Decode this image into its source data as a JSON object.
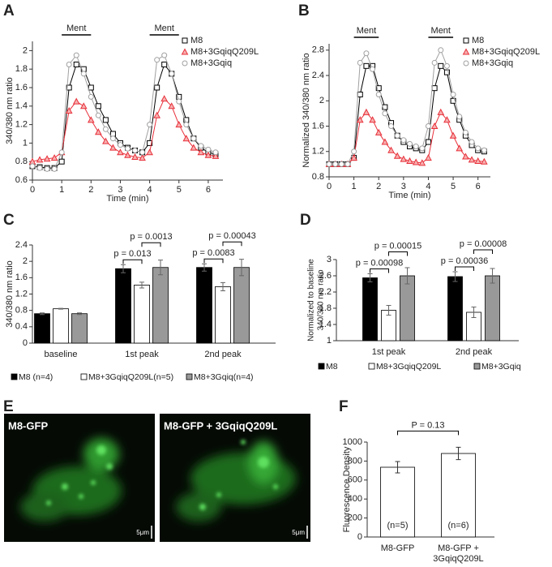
{
  "chart_data": [
    {
      "type": "line",
      "panel_label": "A",
      "xlabel": "Time (min)",
      "ylabel": "340/380 nm ratio",
      "x": [
        0,
        0.25,
        0.5,
        0.75,
        1,
        1.25,
        1.5,
        1.75,
        2,
        2.25,
        2.5,
        2.75,
        3,
        3.25,
        3.5,
        3.75,
        4,
        4.25,
        4.5,
        4.75,
        5,
        5.25,
        5.5,
        5.75,
        6,
        6.25
      ],
      "xlim": [
        0,
        6.5
      ],
      "xticks": [
        0,
        1,
        2,
        3,
        4,
        5,
        6
      ],
      "ylim": [
        0.6,
        2.1
      ],
      "yticks": [
        0.6,
        0.8,
        1,
        1.2,
        1.4,
        1.6,
        1.8,
        2
      ],
      "stimuli": [
        {
          "label": "Ment",
          "start": 1,
          "end": 2
        },
        {
          "label": "Ment",
          "start": 4,
          "end": 5
        }
      ],
      "legend": "upper right",
      "series": [
        {
          "name": "M8",
          "color": "#000000",
          "marker": "square",
          "values": [
            0.75,
            0.74,
            0.73,
            0.73,
            0.8,
            1.6,
            1.85,
            1.8,
            1.6,
            1.4,
            1.25,
            1.1,
            1.0,
            0.95,
            0.92,
            0.9,
            1.0,
            1.6,
            1.85,
            1.75,
            1.5,
            1.25,
            1.05,
            0.95,
            0.9,
            0.88
          ]
        },
        {
          "name": "M8+3GqiqQ209L",
          "color": "#e8303a",
          "marker": "triangle",
          "values": [
            0.8,
            0.82,
            0.83,
            0.84,
            0.9,
            1.35,
            1.45,
            1.4,
            1.25,
            1.12,
            1.02,
            0.95,
            0.9,
            0.87,
            0.85,
            0.84,
            0.9,
            1.3,
            1.48,
            1.4,
            1.2,
            1.05,
            0.95,
            0.9,
            0.87,
            0.86
          ]
        },
        {
          "name": "M8+3Gqiq",
          "color": "#a0a0a0",
          "marker": "circle",
          "values": [
            0.75,
            0.73,
            0.72,
            0.72,
            0.9,
            1.85,
            1.95,
            1.75,
            1.5,
            1.3,
            1.15,
            1.05,
            0.98,
            0.94,
            0.92,
            0.9,
            1.2,
            1.9,
            1.95,
            1.75,
            1.45,
            1.2,
            1.05,
            0.97,
            0.93,
            0.9
          ]
        }
      ]
    },
    {
      "type": "line",
      "panel_label": "B",
      "xlabel": "Time (min)",
      "ylabel": "Normalized 340/380 nm ratio",
      "x": [
        0,
        0.25,
        0.5,
        0.75,
        1,
        1.25,
        1.5,
        1.75,
        2,
        2.25,
        2.5,
        2.75,
        3,
        3.25,
        3.5,
        3.75,
        4,
        4.25,
        4.5,
        4.75,
        5,
        5.25,
        5.5,
        5.75,
        6,
        6.25
      ],
      "xlim": [
        0,
        6.5
      ],
      "xticks": [
        0,
        1,
        2,
        3,
        4,
        5,
        6
      ],
      "ylim": [
        0.8,
        2.9
      ],
      "yticks": [
        0.8,
        1.2,
        1.6,
        2,
        2.4,
        2.8
      ],
      "stimuli": [
        {
          "label": "Ment",
          "start": 1,
          "end": 2
        },
        {
          "label": "Ment",
          "start": 4,
          "end": 5
        }
      ],
      "legend": "upper right",
      "series": [
        {
          "name": "M8",
          "color": "#000000",
          "marker": "square",
          "values": [
            1.0,
            1.0,
            1.0,
            1.0,
            1.1,
            2.1,
            2.55,
            2.55,
            2.2,
            1.9,
            1.65,
            1.45,
            1.35,
            1.28,
            1.25,
            1.22,
            1.35,
            2.2,
            2.55,
            2.45,
            2.0,
            1.7,
            1.45,
            1.3,
            1.22,
            1.2
          ]
        },
        {
          "name": "M8+3GqiqQ209L",
          "color": "#e8303a",
          "marker": "triangle",
          "values": [
            1.0,
            1.0,
            1.0,
            1.0,
            1.1,
            1.7,
            1.82,
            1.7,
            1.5,
            1.35,
            1.22,
            1.13,
            1.08,
            1.05,
            1.03,
            1.02,
            1.1,
            1.6,
            1.82,
            1.7,
            1.45,
            1.25,
            1.12,
            1.07,
            1.05,
            1.04
          ]
        },
        {
          "name": "M8+3Gqiq",
          "color": "#a0a0a0",
          "marker": "circle",
          "values": [
            1.0,
            1.0,
            1.0,
            1.0,
            1.2,
            2.6,
            2.75,
            2.5,
            2.1,
            1.8,
            1.6,
            1.45,
            1.38,
            1.32,
            1.28,
            1.25,
            1.6,
            2.6,
            2.8,
            2.55,
            2.1,
            1.75,
            1.5,
            1.35,
            1.25,
            1.22
          ]
        }
      ]
    },
    {
      "type": "bar",
      "panel_label": "C",
      "ylabel": "340/380 nm ratio",
      "categories": [
        "baseline",
        "1st peak",
        "2nd peak"
      ],
      "ylim": [
        0,
        2.4
      ],
      "yticks": [
        0,
        0.4,
        0.8,
        1.2,
        1.6,
        2,
        2.4
      ],
      "legend": "bottom",
      "series": [
        {
          "name": "M8 (n=4)",
          "color": "#000000",
          "values": [
            0.72,
            1.82,
            1.85
          ],
          "errors": [
            0.02,
            0.1,
            0.09
          ]
        },
        {
          "name": "M8+3GqiqQ209L(n=5)",
          "color": "#ffffff",
          "values": [
            0.84,
            1.42,
            1.38
          ],
          "errors": [
            0.01,
            0.07,
            0.1
          ]
        },
        {
          "name": "M8+3Gqiq(n=4)",
          "color": "#999999",
          "values": [
            0.72,
            1.85,
            1.85
          ],
          "errors": [
            0.02,
            0.18,
            0.2
          ]
        }
      ],
      "annotations": [
        [
          "p = 0.013",
          "p = 0.0013"
        ],
        [
          "p = 0.0083",
          "p = 0.00043"
        ]
      ]
    },
    {
      "type": "bar",
      "panel_label": "D",
      "ylabel": [
        "Normalized to baseline",
        "340/380 nm ratio"
      ],
      "categories": [
        "1st peak",
        "2nd peak"
      ],
      "ylim": [
        1,
        3
      ],
      "yticks": [
        1,
        1.4,
        1.8,
        2.2,
        2.6,
        3
      ],
      "legend": "bottom",
      "series": [
        {
          "name": "M8",
          "color": "#000000",
          "values": [
            2.55,
            2.58
          ],
          "errors": [
            0.1,
            0.12
          ]
        },
        {
          "name": "M8+3GqiqQ209L",
          "color": "#ffffff",
          "values": [
            1.75,
            1.7
          ],
          "errors": [
            0.12,
            0.13
          ]
        },
        {
          "name": "M8+3Gqiq",
          "color": "#999999",
          "values": [
            2.6,
            2.6
          ],
          "errors": [
            0.2,
            0.18
          ]
        }
      ],
      "annotations": [
        [
          "p = 0.00098",
          "p = 0.00015"
        ],
        [
          "p = 0.00036",
          "p = 0.00008"
        ]
      ]
    },
    {
      "type": "bar",
      "panel_label": "F",
      "ylabel": "Fluorescence Density",
      "categories": [
        "M8-GFP",
        "M8-GFP + 3GqiqQ209L"
      ],
      "values": [
        735,
        880
      ],
      "errors": [
        60,
        65
      ],
      "color": "#ffffff",
      "n_labels": [
        "(n=5)",
        "(n=6)"
      ],
      "comparison": "P = 0.13",
      "ylim": [
        0,
        1000
      ],
      "yticks": [
        0,
        200,
        400,
        600,
        800,
        1000
      ]
    }
  ],
  "images": {
    "panel_label": "E",
    "panels": [
      {
        "label": "M8-GFP",
        "scale": "5μm"
      },
      {
        "label": "M8-GFP + 3GqiqQ209L",
        "scale": "5μm"
      }
    ]
  }
}
